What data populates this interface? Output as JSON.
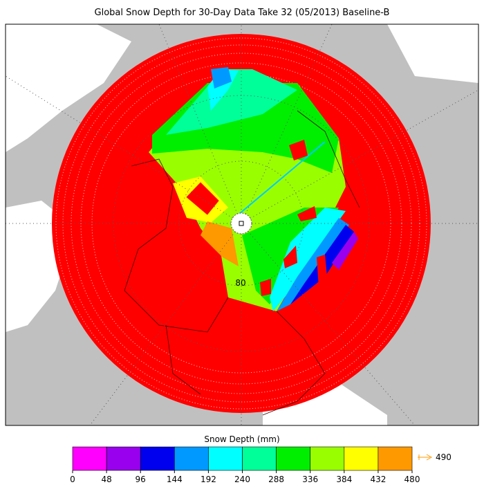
{
  "title": "Global Snow Depth for 30-Day Data Take 32 (05/2013) Baseline-B",
  "map": {
    "latitude_label": "80"
  },
  "legend": {
    "title": "Snow Depth (mm)",
    "colors": [
      "#ff00ff",
      "#9900ee",
      "#0000ee",
      "#0099ff",
      "#00ffff",
      "#00ff99",
      "#00ee00",
      "#99ff00",
      "#ffff00",
      "#ff9900"
    ],
    "ticks": [
      0,
      48,
      96,
      144,
      192,
      240,
      288,
      336,
      384,
      432,
      480
    ],
    "overflow": {
      "label": "490",
      "color": "#ff9900"
    }
  }
}
